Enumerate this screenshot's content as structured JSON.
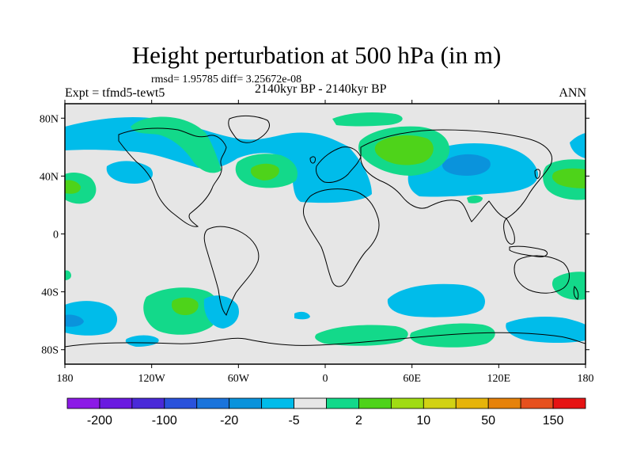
{
  "title": "Height perturbation at 500 hPa (in m)",
  "stats": "rmsd= 1.95785 diff= 3.25672e-08",
  "experiment": "Expt = tfmd5-tewt5",
  "period": "2140kyr BP - 2140kyr BP",
  "season": "ANN",
  "colors": {
    "land_background": "#e6e6e6",
    "light_blue": "#00bcea",
    "mid_blue": "#0a93dc",
    "cyan_green": "#13d98a",
    "green": "#4ed31a",
    "coastline": "#000000"
  },
  "axes": {
    "lon_ticks": [
      {
        "lon": -180,
        "label": "180"
      },
      {
        "lon": -120,
        "label": "120W"
      },
      {
        "lon": -60,
        "label": "60W"
      },
      {
        "lon": 0,
        "label": "0"
      },
      {
        "lon": 60,
        "label": "60E"
      },
      {
        "lon": 120,
        "label": "120E"
      },
      {
        "lon": 180,
        "label": "180"
      }
    ],
    "lat_ticks": [
      {
        "lat": 80,
        "label": "80N"
      },
      {
        "lat": 40,
        "label": "40N"
      },
      {
        "lat": 0,
        "label": "0"
      },
      {
        "lat": -40,
        "label": "40S"
      },
      {
        "lat": -80,
        "label": "80S"
      }
    ]
  },
  "colorbar": {
    "colors": [
      "#8c1ae6",
      "#6a1ae0",
      "#4a2ad8",
      "#2a52dc",
      "#1a74dc",
      "#0a93dc",
      "#00bcea",
      "#e6e6e6",
      "#13d98a",
      "#4ed31a",
      "#a0dc14",
      "#d2d214",
      "#e6b40a",
      "#e6820a",
      "#e6501e",
      "#e61414"
    ],
    "labels": [
      {
        "after_box": 1,
        "text": "-200"
      },
      {
        "after_box": 3,
        "text": "-100"
      },
      {
        "after_box": 5,
        "text": "-20"
      },
      {
        "after_box": 7,
        "text": "-5"
      },
      {
        "after_box": 9,
        "text": "2"
      },
      {
        "after_box": 11,
        "text": "10"
      },
      {
        "after_box": 13,
        "text": "50"
      },
      {
        "after_box": 15,
        "text": "150"
      }
    ]
  }
}
